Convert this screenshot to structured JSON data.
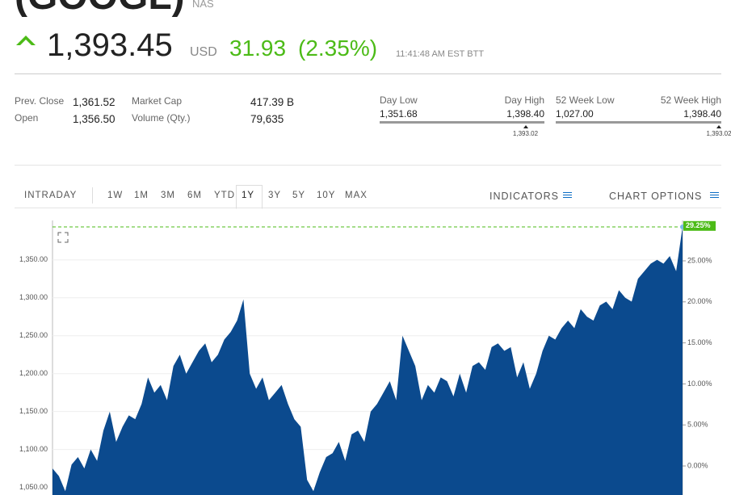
{
  "header": {
    "title": "(GOOGL)",
    "exchange": "NAS",
    "price": "1,393.45",
    "currency": "USD",
    "change": "31.93",
    "change_percent": "(2.35%)",
    "time": "11:41:48 AM EST BTT"
  },
  "stats": [
    {
      "label": "Prev. Close",
      "value": "1,361.52"
    },
    {
      "label": "Open",
      "value": "1,356.50"
    },
    {
      "label": "Market Cap",
      "value": "417.39 B"
    },
    {
      "label": "Volume (Qty.)",
      "value": "79,635"
    }
  ],
  "ranges": [
    {
      "low_label": "Day Low",
      "high_label": "Day High",
      "low": {
        "value": 1351.68,
        "label": "1,351.68"
      },
      "high": {
        "value": 1398.4,
        "label": "1,398.40"
      },
      "current": {
        "value": 1393.02,
        "label": "1,393.02"
      }
    },
    {
      "low_label": "52 Week Low",
      "high_label": "52 Week High",
      "low": {
        "value": 1027.0,
        "label": "1,027.00"
      },
      "high": {
        "value": 1398.4,
        "label": "1,398.40"
      },
      "current": {
        "value": 1393.02,
        "label": "1,393.02"
      }
    }
  ],
  "tabs": {
    "left": [
      "INTRADAY",
      "1W",
      "1M",
      "3M",
      "6M",
      "YTD",
      "1Y",
      "3Y",
      "5Y",
      "10Y",
      "MAX"
    ],
    "selected": "1Y",
    "right": [
      "INDICATORS",
      "CHART OPTIONS"
    ]
  },
  "chart_data": {
    "type": "area",
    "color": "#0b4a8e",
    "values": [
      1075,
      1065,
      1045,
      1080,
      1090,
      1075,
      1100,
      1085,
      1125,
      1150,
      1110,
      1130,
      1145,
      1140,
      1160,
      1195,
      1175,
      1185,
      1165,
      1210,
      1225,
      1200,
      1215,
      1230,
      1240,
      1215,
      1225,
      1245,
      1255,
      1270,
      1298,
      1200,
      1180,
      1195,
      1165,
      1175,
      1185,
      1160,
      1140,
      1130,
      1060,
      1045,
      1070,
      1090,
      1095,
      1110,
      1085,
      1120,
      1125,
      1110,
      1150,
      1160,
      1175,
      1190,
      1165,
      1250,
      1230,
      1210,
      1165,
      1185,
      1175,
      1195,
      1190,
      1170,
      1200,
      1175,
      1210,
      1215,
      1205,
      1235,
      1240,
      1230,
      1235,
      1195,
      1215,
      1180,
      1200,
      1230,
      1250,
      1245,
      1260,
      1270,
      1260,
      1285,
      1275,
      1270,
      1290,
      1295,
      1285,
      1310,
      1300,
      1295,
      1325,
      1335,
      1345,
      1350,
      1345,
      1355,
      1335,
      1393.45
    ],
    "ylim": [
      1040,
      1402
    ],
    "yticks": [
      {
        "value": 1050,
        "label": "1,050.00"
      },
      {
        "value": 1100,
        "label": "1,100.00"
      },
      {
        "value": 1150,
        "label": "1,150.00"
      },
      {
        "value": 1200,
        "label": "1,200.00"
      },
      {
        "value": 1250,
        "label": "1,250.00"
      },
      {
        "value": 1300,
        "label": "1,300.00"
      },
      {
        "value": 1350,
        "label": "1,350.00"
      }
    ],
    "y2lim": [
      -3.54,
      29.92
    ],
    "y2ticks": [
      {
        "value": 0,
        "label": "0.00%"
      },
      {
        "value": 5,
        "label": "5.00%"
      },
      {
        "value": 10,
        "label": "10.00%"
      },
      {
        "value": 15,
        "label": "15.00%"
      },
      {
        "value": 20,
        "label": "20.00%"
      },
      {
        "value": 25,
        "label": "25.00%"
      }
    ],
    "y2_marker": {
      "value": 29.25,
      "label": "29.25%"
    },
    "grid": true
  }
}
